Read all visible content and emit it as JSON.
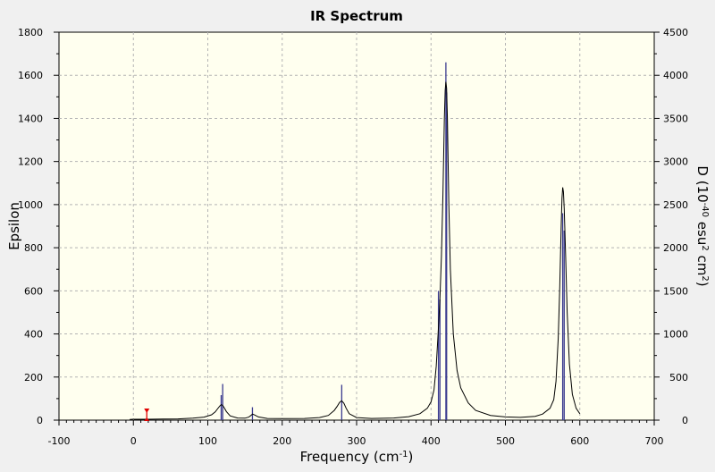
{
  "chart_data": {
    "type": "line",
    "title": "IR Spectrum",
    "xlabel": "Frequency (cm",
    "xlabel_sup": "-1",
    "xlabel_end": ")",
    "ylabel": "Epsilon",
    "y2label_pre": "D (10",
    "y2label_sup1": "-40",
    "y2label_mid": " esu",
    "y2label_sup2": "2",
    "y2label_mid2": " cm",
    "y2label_sup3": "2",
    "y2label_end": ")",
    "xlim": [
      -100,
      700
    ],
    "ylim": [
      0,
      1800
    ],
    "y2lim": [
      0,
      4500
    ],
    "xticks": [
      "-100",
      "0",
      "100",
      "200",
      "300",
      "400",
      "500",
      "600",
      "700"
    ],
    "yticks": [
      "0",
      "200",
      "400",
      "600",
      "800",
      "1000",
      "1200",
      "1400",
      "1600",
      "1800"
    ],
    "y2ticks": [
      "0",
      "500",
      "1000",
      "1500",
      "2000",
      "2500",
      "3000",
      "3500",
      "4000",
      "4500"
    ],
    "grid": true,
    "series": [
      {
        "role": "epsilon-curve",
        "color": "#000000",
        "x": [
          -5,
          0,
          20,
          40,
          60,
          80,
          95,
          105,
          110,
          113,
          116,
          118,
          120,
          122,
          125,
          130,
          140,
          150,
          155,
          158,
          160,
          163,
          168,
          180,
          200,
          230,
          250,
          262,
          270,
          274,
          277,
          280,
          283,
          286,
          290,
          300,
          320,
          350,
          370,
          385,
          395,
          400,
          404,
          407,
          410,
          412,
          414,
          416,
          418,
          419,
          420,
          421,
          422,
          424,
          426,
          430,
          435,
          440,
          450,
          460,
          480,
          500,
          520,
          540,
          550,
          560,
          565,
          568,
          571,
          573,
          575,
          576,
          577,
          578,
          579,
          581,
          583,
          586,
          590,
          595,
          600
        ],
        "y": [
          3,
          4,
          4,
          5,
          6,
          9,
          14,
          25,
          38,
          52,
          65,
          72,
          68,
          58,
          40,
          20,
          10,
          9,
          14,
          22,
          28,
          24,
          15,
          8,
          7,
          8,
          12,
          22,
          45,
          65,
          82,
          90,
          78,
          55,
          30,
          12,
          8,
          10,
          16,
          30,
          55,
          85,
          140,
          250,
          430,
          560,
          760,
          1050,
          1400,
          1530,
          1570,
          1540,
          1400,
          1000,
          700,
          400,
          230,
          150,
          80,
          45,
          22,
          15,
          13,
          18,
          28,
          55,
          95,
          180,
          380,
          620,
          900,
          1030,
          1080,
          1060,
          980,
          760,
          500,
          260,
          120,
          55,
          30
        ]
      },
      {
        "role": "intensity-sticks",
        "color": "#3b3b8f",
        "axis": "y2",
        "x": [
          118,
          120,
          160,
          280,
          410,
          412,
          420,
          421,
          577,
          579
        ],
        "y": [
          290,
          420,
          150,
          410,
          1500,
          1400,
          4150,
          3800,
          2400,
          2200
        ]
      }
    ],
    "marker": {
      "x": 18,
      "y": 0,
      "color": "#e00000"
    }
  }
}
